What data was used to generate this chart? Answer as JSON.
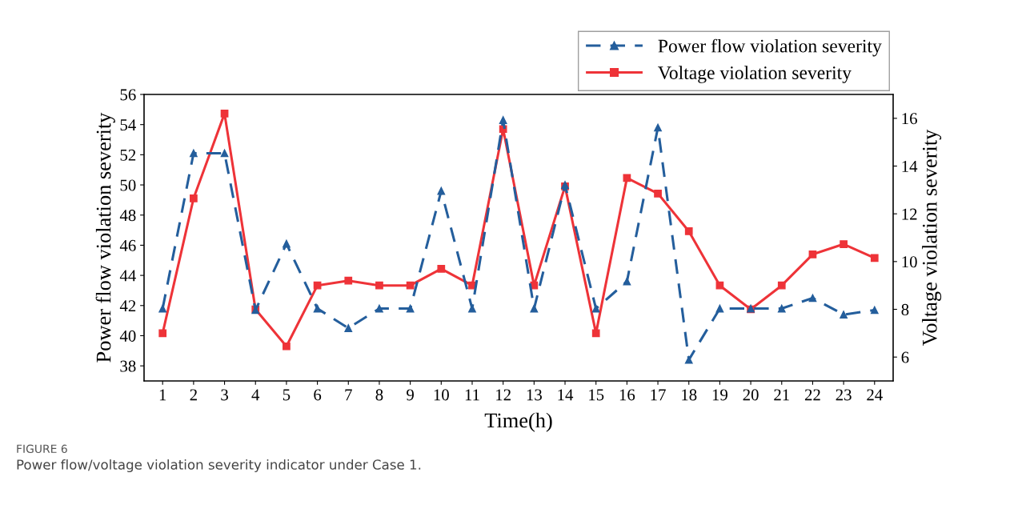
{
  "chart_data": {
    "type": "line",
    "xlabel": "Time(h)",
    "ylabel": "Power flow violation severity",
    "y2label": "Voltage violation severity",
    "categories": [
      "1",
      "2",
      "3",
      "4",
      "5",
      "6",
      "7",
      "8",
      "9",
      "10",
      "11",
      "12",
      "13",
      "14",
      "15",
      "16",
      "17",
      "18",
      "19",
      "20",
      "21",
      "22",
      "23",
      "24"
    ],
    "series": [
      {
        "name": "Power flow violation severity",
        "color": "#245e9c",
        "marker": "triangle",
        "line_style": "dashed",
        "values": [
          41.8,
          52.1,
          52.1,
          41.7,
          46.1,
          41.8,
          40.5,
          41.8,
          41.8,
          49.6,
          41.8,
          54.3,
          41.8,
          50.0,
          41.8,
          43.6,
          53.8,
          38.4,
          41.8,
          41.8,
          41.8,
          42.5,
          41.4,
          41.7
        ]
      },
      {
        "name": "Voltage violation severity",
        "color": "#ee3338",
        "marker": "square",
        "line_style": "solid",
        "axis": "y2",
        "values": [
          7.0,
          12.65,
          16.2,
          8.0,
          6.45,
          9.0,
          9.2,
          9.0,
          9.0,
          9.7,
          9.0,
          15.55,
          9.0,
          13.15,
          7.0,
          13.5,
          12.85,
          11.27,
          9.0,
          8.0,
          9.0,
          10.3,
          10.73,
          10.15
        ]
      }
    ],
    "ylim": [
      37,
      56
    ],
    "yticks": [
      38,
      40,
      42,
      44,
      46,
      48,
      50,
      52,
      54,
      56
    ],
    "y2lim": [
      5,
      17
    ],
    "y2ticks": [
      6,
      8,
      10,
      12,
      14,
      16
    ],
    "legend": "top right",
    "grid": false,
    "annotations": [
      "FIGURE 6",
      "Power flow/voltage violation severity indicator under Case 1."
    ]
  }
}
